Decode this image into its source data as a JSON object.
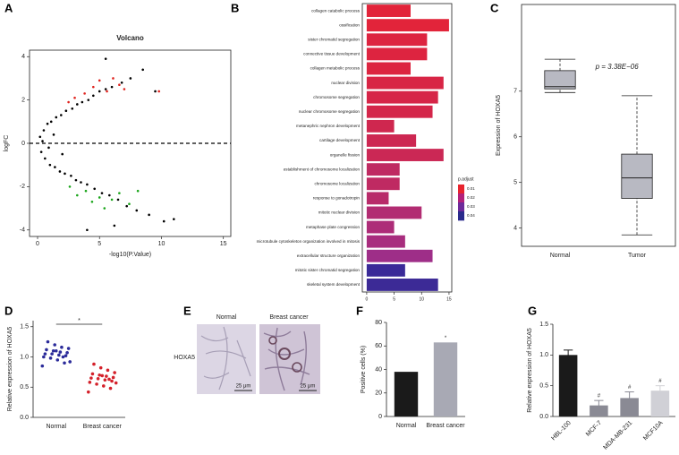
{
  "chart_data": [
    {
      "panel": "A",
      "type": "scatter",
      "title": "Volcano",
      "xlabel": "-log10(P.Value)",
      "ylabel": "logFC",
      "frame": true,
      "xlim": [
        -0.65,
        15.6
      ],
      "ylim": [
        -4.3,
        4.3
      ],
      "xticks": [
        0,
        5,
        10,
        15
      ],
      "yticks": [
        -4,
        -2,
        0,
        2,
        4
      ],
      "hline": 0,
      "series": [
        {
          "color": "#000000",
          "x": [
            0.2,
            0.5,
            0.8,
            1.1,
            1.5,
            1.9,
            2.3,
            2.8,
            3.2,
            3.6,
            4.1,
            4.5,
            5.0,
            5.5,
            6.0,
            6.8,
            7.5,
            8.5,
            0.3,
            0.6,
            1.0,
            1.4,
            1.8,
            2.2,
            2.7,
            3.1,
            3.5,
            4.0,
            4.6,
            5.2,
            5.8,
            6.5,
            7.2,
            8.0,
            9.0,
            10.2,
            0.4,
            0.9,
            1.3,
            2.0,
            5.5,
            9.5,
            6.2,
            4.0,
            11.0
          ],
          "y": [
            0.3,
            0.6,
            0.9,
            1.0,
            1.2,
            1.3,
            1.5,
            1.6,
            1.8,
            1.9,
            2.0,
            2.2,
            2.4,
            2.5,
            2.6,
            2.8,
            3.0,
            3.4,
            -0.4,
            -0.7,
            -1.0,
            -1.1,
            -1.3,
            -1.4,
            -1.5,
            -1.7,
            -1.8,
            -1.9,
            -2.1,
            -2.3,
            -2.4,
            -2.6,
            -2.9,
            -3.1,
            -3.3,
            -3.6,
            0.1,
            -0.2,
            0.4,
            -0.5,
            3.9,
            2.4,
            -3.8,
            -4.0,
            -3.5
          ]
        },
        {
          "color": "#e0231e",
          "x": [
            3.0,
            3.8,
            4.5,
            5.0,
            5.6,
            6.1,
            6.6,
            7.0,
            9.8,
            2.5
          ],
          "y": [
            2.1,
            2.3,
            2.6,
            2.9,
            2.4,
            3.0,
            2.7,
            2.5,
            2.4,
            1.9
          ]
        },
        {
          "color": "#1aa51a",
          "x": [
            2.6,
            3.2,
            3.9,
            4.4,
            5.0,
            5.4,
            6.0,
            6.6,
            7.4,
            8.1
          ],
          "y": [
            -2.0,
            -2.4,
            -2.2,
            -2.7,
            -2.5,
            -3.0,
            -2.6,
            -2.3,
            -2.8,
            -2.2
          ]
        }
      ]
    },
    {
      "panel": "B",
      "type": "barh",
      "frame": true,
      "xlim": [
        -0.8,
        15.5
      ],
      "xticks": [
        0,
        5,
        10,
        15
      ],
      "categories": [
        "collagen catabolic process",
        "ossification",
        "sister chromatid segregation",
        "connective tissue development",
        "collagen metabolic process",
        "nuclear division",
        "chromosome segregation",
        "nuclear chromosome segregation",
        "metanephric nephron development",
        "cartilage development",
        "organelle fission",
        "establishment of chromosome localization",
        "chromosome localization",
        "response to gonadotropin",
        "mitotic nuclear division",
        "metaphase plate congression",
        "microtubule cytoskeleton organization involved in mitosis",
        "extracellular structure organization",
        "mitotic sister chromatid segregation",
        "skeletal system development"
      ],
      "values": [
        8,
        15,
        11,
        11,
        8,
        14,
        13,
        12,
        5,
        9,
        14,
        6,
        6,
        4,
        10,
        5,
        7,
        12,
        7,
        13
      ],
      "colors": [
        "#e2243a",
        "#e2243a",
        "#dd2440",
        "#dd2440",
        "#dc2540",
        "#d82545",
        "#d62548",
        "#d4264a",
        "#cf274f",
        "#cd2752",
        "#cb2855",
        "#bf2a62",
        "#bf2a62",
        "#b82b6a",
        "#b22c72",
        "#ad2c78",
        "#a82d7e",
        "#9e2e88",
        "#3a2a98",
        "#3c2a96"
      ],
      "colorbar": {
        "title": "p.adjust",
        "range": [
          0.005,
          0.045
        ],
        "ticks": [
          0.01,
          0.02,
          0.03,
          0.04
        ],
        "colors": [
          "#e8242e",
          "#b3217a",
          "#6e2a9a",
          "#2a2a8c"
        ]
      }
    },
    {
      "panel": "C",
      "type": "box",
      "ylabel": "Expression of HOXA5",
      "frame": true,
      "annotation": "p = 3.38E−06",
      "ylim": [
        3.6,
        8.9
      ],
      "yticks": [
        4,
        5,
        6,
        7
      ],
      "categories": [
        "Normal",
        "Tumor"
      ],
      "color": "#b8b9c2",
      "boxes": [
        {
          "min": 6.97,
          "q1": 7.05,
          "median": 7.1,
          "q3": 7.45,
          "max": 7.7
        },
        {
          "min": 3.85,
          "q1": 4.65,
          "median": 5.1,
          "q3": 5.62,
          "max": 6.9
        }
      ]
    },
    {
      "panel": "D",
      "type": "strip",
      "ylabel": "Relative expression of HOXA5",
      "annotation": "*",
      "ylim": [
        0,
        1.6
      ],
      "yticks": [
        {
          "value": 0,
          "label": "0.0"
        },
        {
          "value": 0.5,
          "label": "0.5"
        },
        {
          "value": 1,
          "label": "1.0"
        },
        {
          "value": 1.5,
          "label": "1.5"
        }
      ],
      "categories": [
        "Normal",
        "Breast cancer"
      ],
      "colors": [
        "#2b2b9a",
        "#d4202a"
      ],
      "values": [
        [
          0.85,
          0.9,
          0.95,
          0.98,
          1.0,
          1.02,
          1.03,
          1.05,
          1.05,
          1.07,
          1.08,
          1.1,
          1.12,
          1.14,
          1.16,
          1.2,
          1.25,
          0.92,
          1.0,
          1.1
        ],
        [
          0.42,
          0.48,
          0.52,
          0.55,
          0.58,
          0.6,
          0.62,
          0.64,
          0.65,
          0.66,
          0.68,
          0.7,
          0.72,
          0.74,
          0.78,
          0.82,
          0.88,
          0.57,
          0.63,
          0.69
        ]
      ]
    },
    {
      "panel": "F",
      "type": "bar",
      "ylabel": "Positive cells (%)",
      "ylim": [
        0,
        80
      ],
      "yticks": [
        0,
        20,
        40,
        60,
        80
      ],
      "categories": [
        "Normal",
        "Breast cancer"
      ],
      "values": [
        38,
        63
      ],
      "colors": [
        "#1a1a1a",
        "#a8a9b4"
      ],
      "value_annotations": [
        null,
        "*"
      ]
    },
    {
      "panel": "G",
      "type": "bar",
      "ylabel": "Relative expression of HOXA5",
      "xtick_rotation": 45,
      "ylim": [
        0,
        1.5
      ],
      "yticks": [
        {
          "value": 0,
          "label": "0.0"
        },
        {
          "value": 0.5,
          "label": "0.5"
        },
        {
          "value": 1,
          "label": "1.0"
        },
        {
          "value": 1.5,
          "label": "1.5"
        }
      ],
      "categories": [
        "HBL-100",
        "MCF-7",
        "MDA-MB-231",
        "MCF10A"
      ],
      "values": [
        1.0,
        0.18,
        0.3,
        0.42
      ],
      "errors": [
        0.08,
        0.08,
        0.1,
        0.08
      ],
      "colors": [
        "#1a1a1a",
        "#8a8a94",
        "#8a8a94",
        "#d0d0d6"
      ],
      "value_annotations": [
        null,
        "#",
        "#",
        "#"
      ]
    }
  ],
  "panel_e": {
    "panel": "E",
    "row_label": "HOXA5",
    "images": [
      {
        "label": "Normal",
        "scale": "25 μm"
      },
      {
        "label": "Breast cancer",
        "scale": "25 μm"
      }
    ]
  }
}
